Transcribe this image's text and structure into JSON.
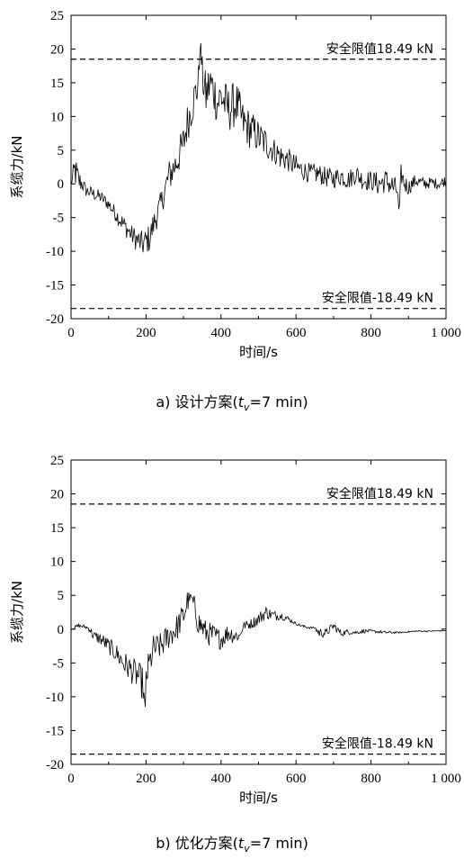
{
  "chart_data": [
    {
      "type": "line",
      "caption": {
        "prefix": "a) 设计方案(",
        "var": "t",
        "sub": "v",
        "suffix": "=7 min)"
      },
      "xlabel": "时间/s",
      "ylabel": "系缆力/kN",
      "xlim": [
        0,
        1000
      ],
      "ylim": [
        -20,
        25
      ],
      "xticks": [
        0,
        200,
        400,
        600,
        800,
        1000
      ],
      "xtick_labels": [
        "0",
        "200",
        "400",
        "600",
        "800",
        "1 000"
      ],
      "yticks": [
        -20,
        -15,
        -10,
        -5,
        0,
        5,
        10,
        15,
        20,
        25
      ],
      "ytick_labels": [
        "-20",
        "-15",
        "-10",
        "-5",
        "0",
        "5",
        "10",
        "15",
        "20",
        "25"
      ],
      "grid": false,
      "limits": [
        {
          "value": 18.49,
          "label": "安全限值18.49 kN"
        },
        {
          "value": -18.49,
          "label": "安全限值-18.49 kN"
        }
      ],
      "series": [
        {
          "x": [
            0,
            10,
            20,
            30,
            40,
            60,
            80,
            100,
            120,
            140,
            160,
            180,
            190,
            200,
            210,
            220,
            240,
            250,
            260,
            280,
            300,
            310,
            320,
            330,
            340,
            345,
            350,
            360,
            370,
            380,
            390,
            400,
            420,
            440,
            460,
            480,
            500,
            520,
            540,
            560,
            580,
            600,
            620,
            640,
            660,
            680,
            700,
            720,
            740,
            760,
            780,
            800,
            820,
            840,
            860,
            870,
            875,
            880,
            890,
            900,
            920,
            940,
            960,
            980,
            1000
          ],
          "y": [
            0,
            2,
            0.5,
            0,
            -1,
            -1.5,
            -2,
            -3,
            -4.5,
            -6,
            -7.5,
            -8.5,
            -9,
            -8.5,
            -8,
            -6,
            -3,
            -1,
            1,
            3,
            6,
            9,
            11,
            13,
            15,
            21.5,
            16,
            13,
            15,
            14,
            12,
            13,
            11,
            12,
            9,
            8,
            7,
            6,
            5,
            4,
            3.5,
            2.5,
            2,
            1.5,
            1.5,
            1,
            0.8,
            1.2,
            0.6,
            1.5,
            0.5,
            0.5,
            0,
            0.5,
            -0.5,
            -1,
            -4.5,
            1.5,
            0,
            -0.5,
            0.5,
            0,
            0.2,
            0,
            0.5
          ],
          "noise": [
            0.5,
            2.5,
            2,
            1.2,
            1,
            1,
            1,
            1,
            1.2,
            1.5,
            1.5,
            1.8,
            2,
            2,
            2.2,
            2,
            2,
            2,
            2.5,
            2.5,
            3,
            3,
            3,
            3,
            3,
            0,
            3,
            3.5,
            3.5,
            3.5,
            3.5,
            3.5,
            3.5,
            3.5,
            3,
            3,
            2.5,
            2.5,
            2,
            2,
            1.8,
            1.8,
            1.5,
            1.5,
            1.5,
            1.5,
            1.5,
            1.5,
            1.5,
            1.5,
            1.5,
            1.5,
            1.8,
            1.8,
            2,
            1.5,
            0,
            1.5,
            1.5,
            1.2,
            1,
            1,
            0.8,
            0.8,
            0.8
          ]
        }
      ]
    },
    {
      "type": "line",
      "caption": {
        "prefix": "b) 优化方案(",
        "var": "t",
        "sub": "v",
        "suffix": "=7 min)"
      },
      "xlabel": "时间/s",
      "ylabel": "系缆力/kN",
      "xlim": [
        0,
        1000
      ],
      "ylim": [
        -20,
        25
      ],
      "xticks": [
        0,
        200,
        400,
        600,
        800,
        1000
      ],
      "xtick_labels": [
        "0",
        "200",
        "400",
        "600",
        "800",
        "1 000"
      ],
      "yticks": [
        -20,
        -15,
        -10,
        -5,
        0,
        5,
        10,
        15,
        20,
        25
      ],
      "ytick_labels": [
        "-20",
        "-15",
        "-10",
        "-5",
        "0",
        "5",
        "10",
        "15",
        "20",
        "25"
      ],
      "grid": false,
      "limits": [
        {
          "value": 18.49,
          "label": "安全限值18.49 kN"
        },
        {
          "value": -18.49,
          "label": "安全限值-18.49 kN"
        }
      ],
      "series": [
        {
          "x": [
            0,
            20,
            40,
            50,
            60,
            80,
            100,
            120,
            140,
            160,
            180,
            190,
            198,
            200,
            210,
            220,
            240,
            260,
            280,
            300,
            310,
            320,
            330,
            340,
            360,
            380,
            400,
            420,
            440,
            450,
            460,
            480,
            500,
            520,
            540,
            560,
            580,
            600,
            620,
            640,
            650,
            660,
            680,
            700,
            720,
            740,
            760,
            780,
            800,
            840,
            880,
            920,
            960,
            1000
          ],
          "y": [
            0,
            0.5,
            0.3,
            0,
            -1,
            -1.5,
            -2.5,
            -3.5,
            -5,
            -6,
            -7,
            -8,
            -11.5,
            -7,
            -5,
            -3,
            -2.5,
            -1,
            0,
            2,
            4,
            5,
            3,
            1,
            -0.5,
            -1,
            -1.5,
            -0.5,
            -1,
            -1,
            0.5,
            0.8,
            1.5,
            2.5,
            2,
            2,
            1.5,
            0.8,
            0.4,
            0.2,
            0.2,
            -0.5,
            -0.6,
            0.5,
            -0.6,
            -0.4,
            -0.5,
            -0.3,
            -0.3,
            -0.5,
            -0.5,
            -0.3,
            -0.3,
            -0.2
          ],
          "noise": [
            0.2,
            0.3,
            0.3,
            0.5,
            0.8,
            1,
            1.2,
            1.5,
            1.8,
            2,
            2.2,
            2.5,
            0,
            2.5,
            2.2,
            2.2,
            2,
            2,
            2,
            2,
            2,
            0,
            2,
            2,
            1.8,
            1.8,
            1.5,
            1.5,
            1.2,
            0.5,
            0.6,
            0.8,
            1,
            1,
            0.8,
            0.6,
            0.4,
            0.2,
            0.2,
            0.2,
            0.1,
            0.8,
            0.6,
            0.6,
            0.5,
            0.4,
            0.3,
            0.3,
            0.2,
            0.2,
            0.1,
            0.1,
            0.1,
            0.1
          ]
        }
      ]
    }
  ]
}
